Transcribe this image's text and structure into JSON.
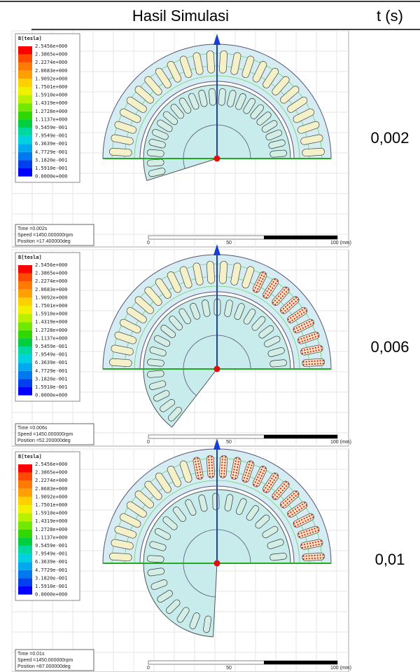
{
  "table": {
    "headers": [
      "Hasil Simulasi",
      "t (s)"
    ],
    "rows": [
      {
        "time": "0,002",
        "simulation": {
          "legend_title": "B[tesla]",
          "legend": [
            "2.5456e+000",
            "2.3865e+000",
            "2.2274e+000",
            "2.0683e+000",
            "1.9092e+000",
            "1.7501e+000",
            "1.5910e+000",
            "1.4319e+000",
            "1.2728e+000",
            "1.1137e+000",
            "9.5459e-001",
            "7.9549e-001",
            "6.3639e-001",
            "4.7729e-001",
            "3.1820e-001",
            "1.5910e-001",
            "0.0000e+000"
          ],
          "info": [
            "Time =0.002s",
            "Speed =1450.000000rpm",
            "Position =17.400000deg"
          ],
          "scale": [
            "0",
            "50",
            "100 (mm)"
          ]
        }
      },
      {
        "time": "0,006",
        "simulation": {
          "legend_title": "B[tesla]",
          "legend": [
            "2.5456e+000",
            "2.3865e+000",
            "2.2274e+000",
            "2.0683e+000",
            "1.9092e+000",
            "1.7501e+000",
            "1.5910e+000",
            "1.4319e+000",
            "1.2728e+000",
            "1.1137e+000",
            "9.5459e-001",
            "7.9549e-001",
            "6.3639e-001",
            "4.7729e-001",
            "3.1820e-001",
            "1.5910e-001",
            "0.0000e+000"
          ],
          "info": [
            "Time =0.006s",
            "Speed =1450.000000rpm",
            "Position =52.200000deg"
          ],
          "scale": [
            "0",
            "50",
            "100 (mm)"
          ]
        }
      },
      {
        "time": "0,01",
        "simulation": {
          "legend_title": "B[tesla]",
          "legend": [
            "2.5456e+000",
            "2.3865e+000",
            "2.2274e+000",
            "2.0683e+000",
            "1.9092e+000",
            "1.7501e+000",
            "1.5910e+000",
            "1.4319e+000",
            "1.2728e+000",
            "1.1137e+000",
            "9.5459e-001",
            "7.9549e-001",
            "6.3639e-001",
            "4.7729e-001",
            "3.1820e-001",
            "1.5910e-001",
            "0.0000e+000"
          ],
          "info": [
            "Time =0.01s",
            "Speed =1450.000000rpm",
            "Position =87.000000deg"
          ],
          "scale": [
            "0",
            "50",
            "100 (mm)"
          ]
        }
      }
    ]
  }
}
